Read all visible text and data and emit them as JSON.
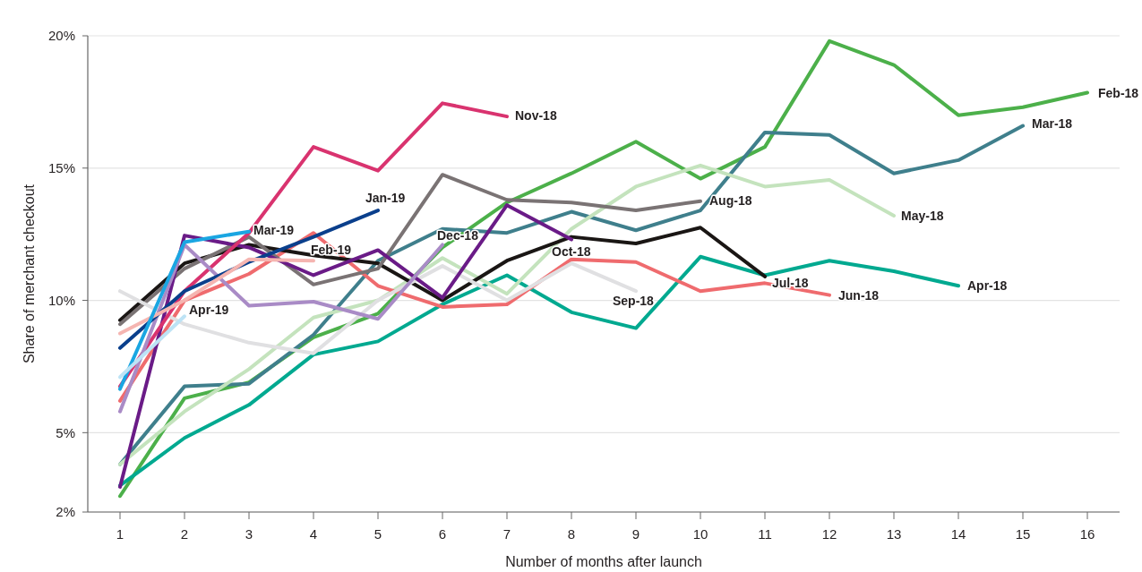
{
  "chart_data": {
    "type": "line",
    "xlabel": "Number of months after launch",
    "ylabel": "Share of merchant checkout",
    "x": [
      1,
      2,
      3,
      4,
      5,
      6,
      7,
      8,
      9,
      10,
      11,
      12,
      13,
      14,
      15,
      16
    ],
    "xlim": [
      0.5,
      16.5
    ],
    "xticks": [
      1,
      2,
      3,
      4,
      5,
      6,
      7,
      8,
      9,
      10,
      11,
      12,
      13,
      14,
      15,
      16
    ],
    "ylim": [
      2,
      20
    ],
    "yticks": [
      {
        "value": 2,
        "label": "2%"
      },
      {
        "value": 5,
        "label": "5%"
      },
      {
        "value": 10,
        "label": "10%"
      },
      {
        "value": 15,
        "label": "15%"
      },
      {
        "value": 20,
        "label": "20%"
      }
    ],
    "grid": "y",
    "marker": "none",
    "line_style": "solid",
    "series": [
      {
        "name": "Feb-18",
        "color": "#4cb04a",
        "values": [
          2.6,
          6.3,
          6.9,
          8.6,
          9.5,
          12.0,
          13.7,
          14.8,
          16.0,
          14.6,
          15.8,
          19.8,
          18.9,
          17.0,
          17.3,
          17.85
        ]
      },
      {
        "name": "Mar-18",
        "color": "#3f7f8c",
        "values": [
          3.8,
          6.75,
          6.85,
          8.7,
          11.5,
          12.7,
          12.55,
          13.35,
          12.65,
          13.4,
          16.35,
          16.25,
          14.8,
          15.3,
          16.6,
          null
        ]
      },
      {
        "name": "Apr-18",
        "color": "#00a990",
        "values": [
          3.0,
          4.8,
          6.05,
          7.95,
          8.45,
          9.85,
          10.95,
          9.55,
          8.95,
          11.65,
          10.95,
          11.5,
          11.1,
          10.55,
          null,
          null
        ]
      },
      {
        "name": "May-18",
        "color": "#c4e3bd",
        "values": [
          3.8,
          5.8,
          7.4,
          9.35,
          10.0,
          11.6,
          10.25,
          12.7,
          14.3,
          15.1,
          14.3,
          14.55,
          13.2,
          null,
          null,
          null
        ]
      },
      {
        "name": "Jun-18",
        "color": "#ef6b6e",
        "values": [
          6.2,
          10.0,
          11.0,
          12.55,
          10.55,
          9.75,
          9.85,
          11.55,
          11.45,
          10.35,
          10.65,
          10.2,
          null,
          null,
          null,
          null
        ]
      },
      {
        "name": "Jul-18",
        "color": "#1a1614",
        "values": [
          9.25,
          11.4,
          12.1,
          11.7,
          11.4,
          10.0,
          11.5,
          12.4,
          12.15,
          12.75,
          10.9,
          null,
          null,
          null,
          null,
          null
        ]
      },
      {
        "name": "Aug-18",
        "color": "#7a7374",
        "values": [
          9.1,
          11.2,
          12.4,
          10.6,
          11.2,
          14.75,
          13.8,
          13.7,
          13.4,
          13.75,
          null,
          null,
          null,
          null,
          null,
          null
        ]
      },
      {
        "name": "Sep-18",
        "color": "#e0e0e2",
        "values": [
          10.35,
          9.1,
          8.4,
          8.0,
          10.0,
          11.3,
          10.0,
          11.4,
          10.35,
          null,
          null,
          null,
          null,
          null,
          null,
          null
        ]
      },
      {
        "name": "Oct-18",
        "color": "#6a1b87",
        "values": [
          2.95,
          12.45,
          12.0,
          10.95,
          11.9,
          10.1,
          13.6,
          12.3,
          null,
          null,
          null,
          null,
          null,
          null,
          null,
          null
        ]
      },
      {
        "name": "Nov-18",
        "color": "#d9336f",
        "values": [
          6.75,
          10.35,
          12.55,
          15.8,
          14.9,
          17.45,
          16.95,
          null,
          null,
          null,
          null,
          null,
          null,
          null,
          null,
          null
        ]
      },
      {
        "name": "Dec-18",
        "color": "#a98bc6",
        "values": [
          5.8,
          12.1,
          9.8,
          9.95,
          9.3,
          12.1,
          null,
          null,
          null,
          null,
          null,
          null,
          null,
          null,
          null,
          null
        ]
      },
      {
        "name": "Jan-19",
        "color": "#0a3f8c",
        "values": [
          8.2,
          10.35,
          11.45,
          12.4,
          13.4,
          null,
          null,
          null,
          null,
          null,
          null,
          null,
          null,
          null,
          null,
          null
        ]
      },
      {
        "name": "Feb-19",
        "color": "#f5b5b1",
        "values": [
          8.75,
          10.0,
          11.55,
          11.5,
          null,
          null,
          null,
          null,
          null,
          null,
          null,
          null,
          null,
          null,
          null,
          null
        ]
      },
      {
        "name": "Mar-19",
        "color": "#1aa6e2",
        "values": [
          6.65,
          12.2,
          12.6,
          null,
          null,
          null,
          null,
          null,
          null,
          null,
          null,
          null,
          null,
          null,
          null,
          null
        ]
      },
      {
        "name": "Apr-19",
        "color": "#bde3f5",
        "values": [
          7.1,
          9.4,
          null,
          null,
          null,
          null,
          null,
          null,
          null,
          null,
          null,
          null,
          null,
          null,
          null,
          null
        ]
      }
    ]
  }
}
